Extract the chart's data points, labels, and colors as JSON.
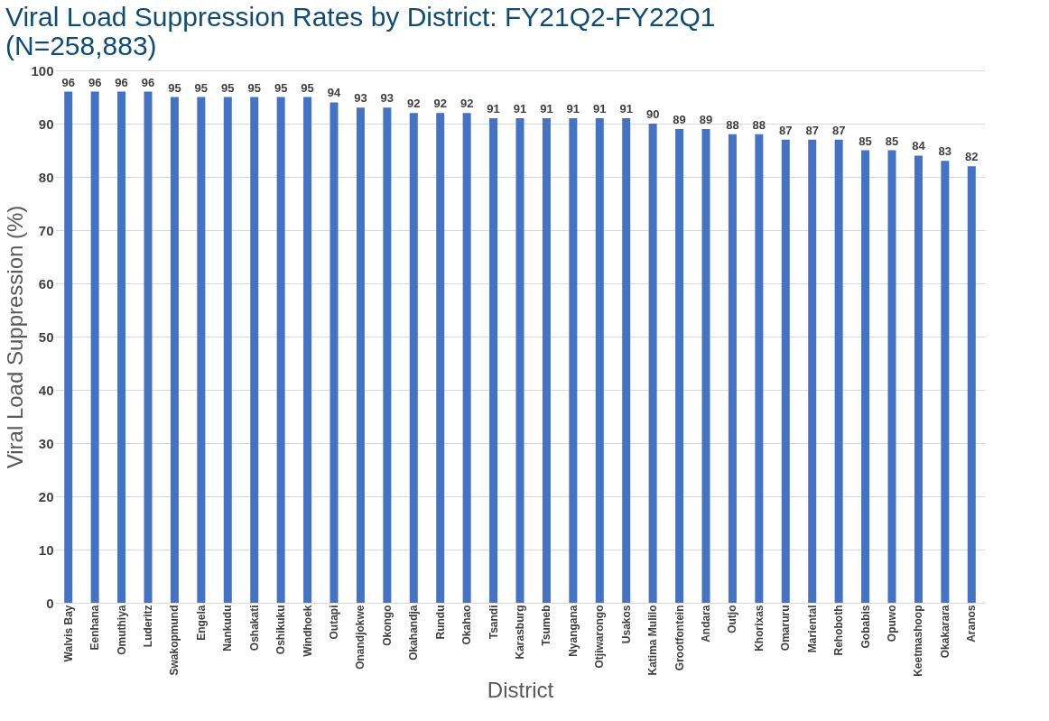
{
  "chart_data": {
    "type": "bar",
    "title": [
      "Viral Load Suppression Rates by District: FY21Q2-FY22Q1",
      "(N=258,883)"
    ],
    "xlabel": "District",
    "ylabel": "Viral Load Suppression (%)",
    "categories": [
      "Walvis Bay",
      "Eenhana",
      "Omuthiya",
      "Luderitz",
      "Swakopmund",
      "Engela",
      "Nankudu",
      "Oshakati",
      "Oshikuku",
      "Windhoek",
      "Outapi",
      "Onandjokwe",
      "Okongo",
      "Okahandja",
      "Rundu",
      "Okahao",
      "Tsandi",
      "Karasburg",
      "Tsumeb",
      "Nyangana",
      "Otjiwarongo",
      "Usakos",
      "Katima Mulilo",
      "Grootfontein",
      "Andara",
      "Outjo",
      "Khorixas",
      "Omaruru",
      "Mariental",
      "Rehoboth",
      "Gobabis",
      "Opuwo",
      "Keetmashoop",
      "Okakarara",
      "Aranos"
    ],
    "values": [
      96,
      96,
      96,
      96,
      95,
      95,
      95,
      95,
      95,
      95,
      94,
      93,
      93,
      92,
      92,
      92,
      91,
      91,
      91,
      91,
      91,
      91,
      90,
      89,
      89,
      88,
      88,
      87,
      87,
      87,
      85,
      85,
      84,
      83,
      82
    ],
    "color": "#4472c4",
    "ylim": [
      0,
      100
    ],
    "yticks": [
      0,
      10,
      20,
      30,
      40,
      50,
      60,
      70,
      80,
      90,
      100
    ],
    "grid": "y",
    "data_labels": true
  }
}
